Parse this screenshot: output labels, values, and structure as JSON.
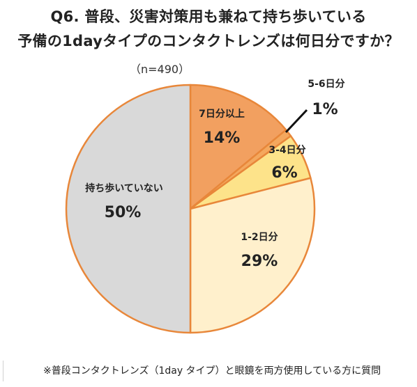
{
  "chart_data": {
    "type": "pie",
    "title_line1": "Q6. 普段、災害対策用も兼ねて持ち歩いている",
    "title_line2": "予備の1dayタイプのコンタクトレンズは何日分ですか？",
    "sample_size": "（n=490）",
    "start_angle_deg": 0,
    "direction": "clockwise",
    "slices": [
      {
        "label": "7日分以上",
        "value": 14,
        "value_label": "14%",
        "color": "#f2a060",
        "stroke": "#e8873a"
      },
      {
        "label": "5-6日分",
        "value": 1,
        "value_label": "1%",
        "color": "#f4a85e",
        "stroke": "#e8873a"
      },
      {
        "label": "3-4日分",
        "value": 6,
        "value_label": "6%",
        "color": "#fde38a",
        "stroke": "#e8873a"
      },
      {
        "label": "1-2日分",
        "value": 29,
        "value_label": "29%",
        "color": "#fff0cc",
        "stroke": "#e8873a"
      },
      {
        "label": "持ち歩いていない",
        "value": 50,
        "value_label": "50%",
        "color": "#d9d9d9",
        "stroke": "#e8873a"
      }
    ],
    "footnote": "※普段コンタクトレンズ（1day タイプ）と眼鏡を両方使用している方に質問"
  }
}
